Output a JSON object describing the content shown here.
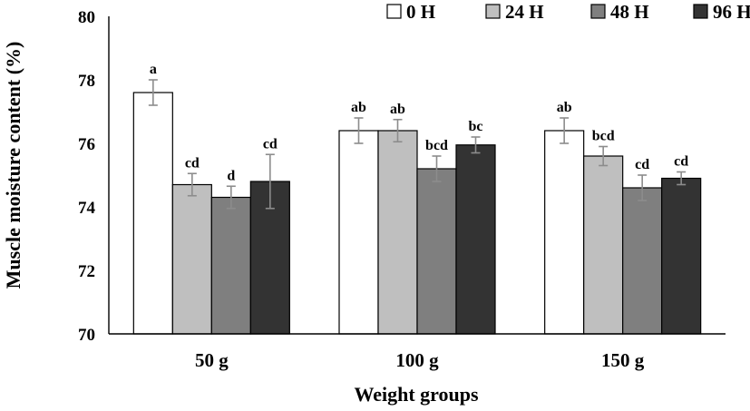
{
  "chart_data": {
    "type": "bar",
    "title": "",
    "xlabel": "Weight groups",
    "ylabel": "Muscle moisture content (%)",
    "ylim": [
      70,
      80
    ],
    "yticks": [
      70,
      72,
      74,
      76,
      78,
      80
    ],
    "grid": false,
    "legend_position": "top-right",
    "categories": [
      "50 g",
      "100 g",
      "150 g"
    ],
    "series": [
      {
        "name": "0 H",
        "color": "#ffffff",
        "values": [
          77.6,
          76.4,
          76.4
        ],
        "errors": [
          0.4,
          0.4,
          0.4
        ],
        "letters": [
          "a",
          "ab",
          "ab"
        ]
      },
      {
        "name": "24 H",
        "color": "#bfbfbf",
        "values": [
          74.7,
          76.4,
          75.6
        ],
        "errors": [
          0.35,
          0.35,
          0.3
        ],
        "letters": [
          "cd",
          "ab",
          "bcd"
        ]
      },
      {
        "name": "48 H",
        "color": "#7f7f7f",
        "values": [
          74.3,
          75.2,
          74.6
        ],
        "errors": [
          0.35,
          0.4,
          0.4
        ],
        "letters": [
          "d",
          "bcd",
          "cd"
        ]
      },
      {
        "name": "96 H",
        "color": "#333333",
        "values": [
          74.8,
          75.95,
          74.9
        ],
        "errors": [
          0.85,
          0.25,
          0.2
        ],
        "letters": [
          "cd",
          "bc",
          "cd"
        ]
      }
    ]
  }
}
